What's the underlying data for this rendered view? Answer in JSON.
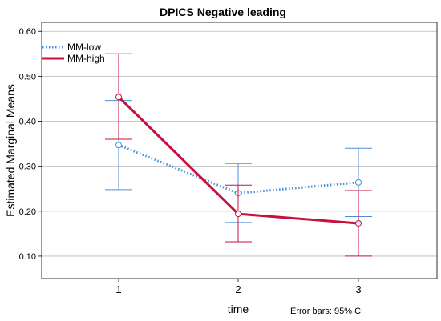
{
  "chart_data": {
    "type": "line",
    "title": "DPICS Negative leading",
    "xlabel": "time",
    "ylabel": "Estimated Marginal Means",
    "note": "Error bars: 95% CI",
    "categories": [
      "1",
      "2",
      "3"
    ],
    "ylim": [
      0.05,
      0.62
    ],
    "yticks": [
      0.1,
      0.2,
      0.3,
      0.4,
      0.5,
      0.6
    ],
    "ytick_labels": [
      "0.10",
      "0.20",
      "0.30",
      "0.40",
      "0.50",
      "0.60"
    ],
    "grid": "horizontal",
    "legend_position": "top-left",
    "series": [
      {
        "name": "MM-low",
        "color": "#4a90d9",
        "style": "dotted",
        "values": [
          0.347,
          0.24,
          0.264
        ],
        "ci_low": [
          0.248,
          0.175,
          0.188
        ],
        "ci_high": [
          0.446,
          0.306,
          0.34
        ]
      },
      {
        "name": "MM-high",
        "color": "#c8103e",
        "style": "solid",
        "values": [
          0.454,
          0.194,
          0.173
        ],
        "ci_low": [
          0.36,
          0.132,
          0.1
        ],
        "ci_high": [
          0.55,
          0.258,
          0.246
        ]
      }
    ]
  }
}
